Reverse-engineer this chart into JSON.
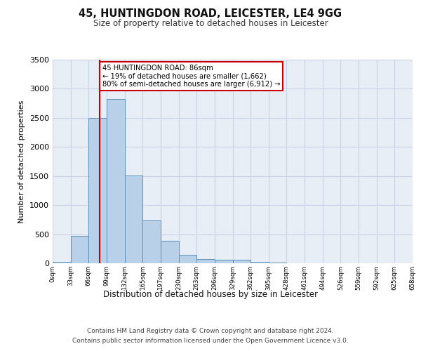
{
  "title1": "45, HUNTINGDON ROAD, LEICESTER, LE4 9GG",
  "title2": "Size of property relative to detached houses in Leicester",
  "xlabel": "Distribution of detached houses by size in Leicester",
  "ylabel": "Number of detached properties",
  "bar_values": [
    20,
    470,
    2500,
    2820,
    1510,
    740,
    390,
    140,
    70,
    55,
    55,
    30,
    10,
    0,
    0,
    0,
    0,
    0,
    0,
    0
  ],
  "bar_labels": [
    "0sqm",
    "33sqm",
    "66sqm",
    "99sqm",
    "132sqm",
    "165sqm",
    "197sqm",
    "230sqm",
    "263sqm",
    "296sqm",
    "329sqm",
    "362sqm",
    "395sqm",
    "428sqm",
    "461sqm",
    "494sqm",
    "526sqm",
    "559sqm",
    "592sqm",
    "625sqm",
    "658sqm"
  ],
  "bar_color": "#b8d0e8",
  "bar_edge_color": "#6090b8",
  "grid_color": "#c8d4e4",
  "background_color": "#e8eef6",
  "vline_x": 86,
  "vline_color": "#cc0000",
  "annotation_line1": "45 HUNTINGDON ROAD: 86sqm",
  "annotation_line2": "← 19% of detached houses are smaller (1,662)",
  "annotation_line3": "80% of semi-detached houses are larger (6,912) →",
  "annotation_box_color": "#cc0000",
  "ylim": [
    0,
    3500
  ],
  "yticks": [
    0,
    500,
    1000,
    1500,
    2000,
    2500,
    3000,
    3500
  ],
  "footnote1": "Contains HM Land Registry data © Crown copyright and database right 2024.",
  "footnote2": "Contains public sector information licensed under the Open Government Licence v3.0.",
  "bin_width": 33,
  "n_bars": 20
}
